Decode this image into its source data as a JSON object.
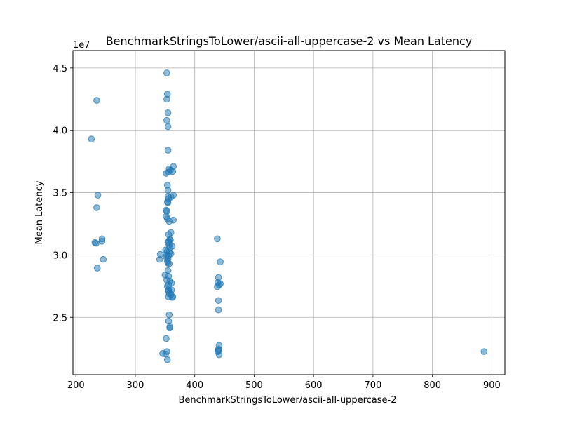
{
  "chart_data": {
    "type": "scatter",
    "title": "BenchmarkStringsToLower/ascii-all-uppercase-2 vs Mean Latency",
    "xlabel": "BenchmarkStringsToLower/ascii-all-uppercase-2",
    "ylabel": "Mean Latency",
    "offset_label": "1e7",
    "xlim": [
      195,
      922
    ],
    "ylim": [
      20400000.0,
      46400000.0
    ],
    "xticks": [
      200,
      300,
      400,
      500,
      600,
      700,
      800,
      900
    ],
    "xtick_labels": [
      "200",
      "300",
      "400",
      "500",
      "600",
      "700",
      "800",
      "900"
    ],
    "yticks": [
      25000000.0,
      30000000.0,
      35000000.0,
      40000000.0,
      45000000.0
    ],
    "ytick_labels": [
      "2.5",
      "3.0",
      "3.5",
      "4.0",
      "4.5"
    ],
    "grid": true,
    "point_color": "#1f77b4",
    "point_alpha": 0.5,
    "points": [
      [
        235,
        42400000.0
      ],
      [
        226,
        39300000.0
      ],
      [
        237,
        34800000.0
      ],
      [
        235,
        33800000.0
      ],
      [
        244,
        31300000.0
      ],
      [
        244,
        31100000.0
      ],
      [
        232,
        31000000.0
      ],
      [
        234,
        30950000.0
      ],
      [
        246,
        29650000.0
      ],
      [
        236,
        28950000.0
      ],
      [
        353,
        44600000.0
      ],
      [
        354,
        42900000.0
      ],
      [
        353,
        42500000.0
      ],
      [
        355,
        41400000.0
      ],
      [
        353,
        40800000.0
      ],
      [
        355,
        40300000.0
      ],
      [
        355,
        38400000.0
      ],
      [
        364,
        37100000.0
      ],
      [
        357,
        36900000.0
      ],
      [
        359,
        36800000.0
      ],
      [
        363,
        36700000.0
      ],
      [
        356,
        36650000.0
      ],
      [
        352,
        36550000.0
      ],
      [
        354,
        35600000.0
      ],
      [
        355,
        35200000.0
      ],
      [
        364,
        34800000.0
      ],
      [
        355,
        34700000.0
      ],
      [
        360,
        34650000.0
      ],
      [
        356,
        34500000.0
      ],
      [
        354,
        34250000.0
      ],
      [
        355,
        34200000.0
      ],
      [
        352,
        33600000.0
      ],
      [
        353,
        33500000.0
      ],
      [
        352,
        33100000.0
      ],
      [
        354,
        32900000.0
      ],
      [
        364,
        32800000.0
      ],
      [
        357,
        32700000.0
      ],
      [
        360,
        31800000.0
      ],
      [
        356,
        31650000.0
      ],
      [
        358,
        31250000.0
      ],
      [
        359,
        31200000.0
      ],
      [
        356,
        31100000.0
      ],
      [
        355,
        31000000.0
      ],
      [
        357,
        30800000.0
      ],
      [
        362,
        30700000.0
      ],
      [
        358,
        30600000.0
      ],
      [
        351,
        30400000.0
      ],
      [
        354,
        30300000.0
      ],
      [
        357,
        30200000.0
      ],
      [
        360,
        30100000.0
      ],
      [
        342,
        30050000.0
      ],
      [
        353,
        30000000.0
      ],
      [
        356,
        29950000.0
      ],
      [
        352,
        29850000.0
      ],
      [
        355,
        29700000.0
      ],
      [
        341,
        29650000.0
      ],
      [
        354,
        29500000.0
      ],
      [
        355,
        29350000.0
      ],
      [
        357,
        29300000.0
      ],
      [
        355,
        28750000.0
      ],
      [
        350,
        28400000.0
      ],
      [
        356,
        28300000.0
      ],
      [
        353,
        28000000.0
      ],
      [
        358,
        27900000.0
      ],
      [
        361,
        27750000.0
      ],
      [
        356,
        27600000.0
      ],
      [
        354,
        27500000.0
      ],
      [
        356,
        27200000.0
      ],
      [
        361,
        27200000.0
      ],
      [
        356,
        27100000.0
      ],
      [
        357,
        26900000.0
      ],
      [
        360,
        26850000.0
      ],
      [
        356,
        26650000.0
      ],
      [
        363,
        26650000.0
      ],
      [
        362,
        26600000.0
      ],
      [
        357,
        25200000.0
      ],
      [
        356,
        24700000.0
      ],
      [
        358,
        24250000.0
      ],
      [
        358,
        24150000.0
      ],
      [
        352,
        23300000.0
      ],
      [
        353,
        22250000.0
      ],
      [
        346,
        22100000.0
      ],
      [
        351,
        22050000.0
      ],
      [
        354,
        21600000.0
      ],
      [
        438,
        31300000.0
      ],
      [
        443,
        29450000.0
      ],
      [
        440,
        28200000.0
      ],
      [
        439,
        27800000.0
      ],
      [
        443,
        27700000.0
      ],
      [
        441,
        27600000.0
      ],
      [
        438,
        27450000.0
      ],
      [
        440,
        26350000.0
      ],
      [
        440,
        25600000.0
      ],
      [
        441,
        22750000.0
      ],
      [
        440,
        22450000.0
      ],
      [
        440,
        22350000.0
      ],
      [
        439,
        22250000.0
      ],
      [
        441,
        22000000.0
      ],
      [
        887,
        22250000.0
      ]
    ]
  }
}
